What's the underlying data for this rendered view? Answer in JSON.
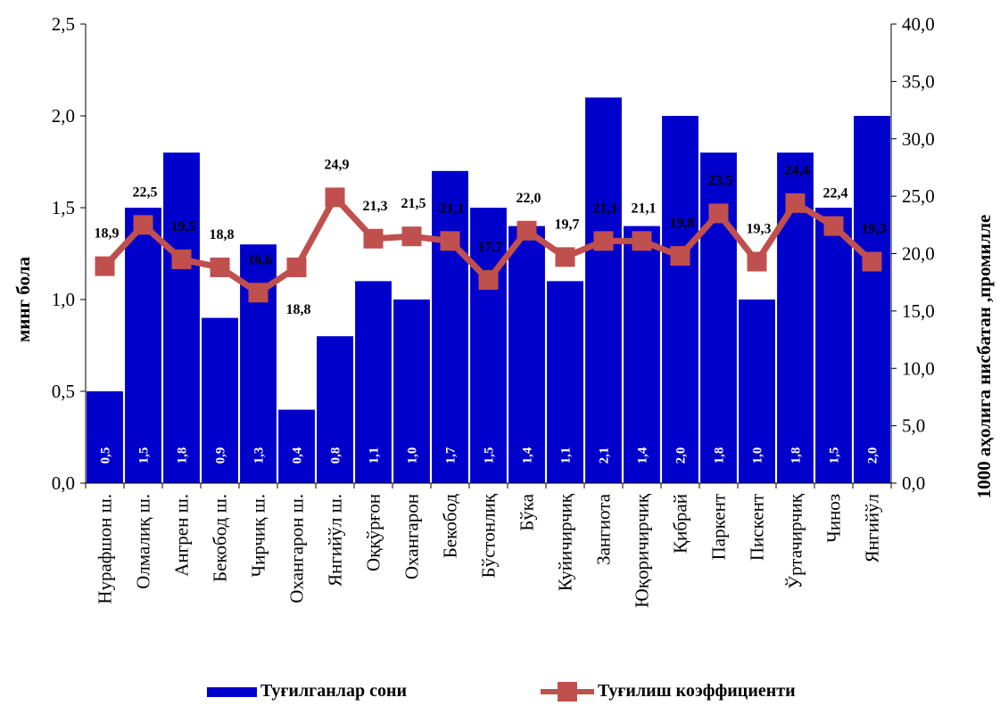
{
  "chart_data": {
    "type": "bar",
    "categories": [
      "Нурафшон ш.",
      "Олмалиқ ш.",
      "Ангрен ш.",
      "Бекобод ш.",
      "Чирчиқ ш.",
      "Охангарон ш.",
      "Янгийўл ш.",
      "Оққўрғон",
      "Охангарон",
      "Бекобод",
      "Бўстонлиқ",
      "Бўка",
      "Куйичирчиқ",
      "Зангиота",
      "Юқоричирчиқ",
      "Қибрай",
      "Паркент",
      "Пискент",
      "Ўртачирчиқ",
      "Чиноз",
      "Янгийўл"
    ],
    "series": [
      {
        "name": "Туғилганлар сони",
        "type": "bar",
        "axis": "left",
        "color": "#0000CC",
        "values": [
          0.5,
          1.5,
          1.8,
          0.9,
          1.3,
          0.4,
          0.8,
          1.1,
          1.0,
          1.7,
          1.5,
          1.4,
          1.1,
          2.1,
          1.4,
          2.0,
          1.8,
          1.0,
          1.8,
          1.5,
          2.0
        ],
        "labels": [
          "0,5",
          "1,5",
          "1,8",
          "0,9",
          "1,3",
          "0,4",
          "0,8",
          "1,1",
          "1,0",
          "1,7",
          "1,5",
          "1,4",
          "1,1",
          "2,1",
          "1,4",
          "2,0",
          "1,8",
          "1,0",
          "1,8",
          "1,5",
          "2,0"
        ]
      },
      {
        "name": "Туғилиш коэффициенти",
        "type": "line",
        "axis": "right",
        "color": "#C0504D",
        "values": [
          18.9,
          22.5,
          19.5,
          18.8,
          16.6,
          18.8,
          24.9,
          21.3,
          21.5,
          21.1,
          17.7,
          22.0,
          19.7,
          21.1,
          21.1,
          19.8,
          23.5,
          19.3,
          24.4,
          22.4,
          19.3
        ],
        "labels": [
          "18,9",
          "22,5",
          "19,5",
          "18,8",
          "16,6",
          "18,8",
          "24,9",
          "21,3",
          "21,5",
          "21,1",
          "17,7",
          "22,0",
          "19,7",
          "21,1",
          "21,1",
          "19,8",
          "23,5",
          "19,3",
          "24,4",
          "22,4",
          "19,3"
        ]
      }
    ],
    "y_left": {
      "label": "минг бола",
      "ylim": [
        0,
        2.5
      ],
      "ticks": [
        "0,0",
        "0,5",
        "1,0",
        "1,5",
        "2,0",
        "2,5"
      ]
    },
    "y_right": {
      "label": "1000 аҳолига нисбатан ,промилле",
      "ylim": [
        0,
        40
      ],
      "ticks": [
        "0,0",
        "5,0",
        "10,0",
        "15,0",
        "20,0",
        "25,0",
        "30,0",
        "35,0",
        "40,0"
      ]
    },
    "grid": false,
    "legend_position": "bottom"
  }
}
